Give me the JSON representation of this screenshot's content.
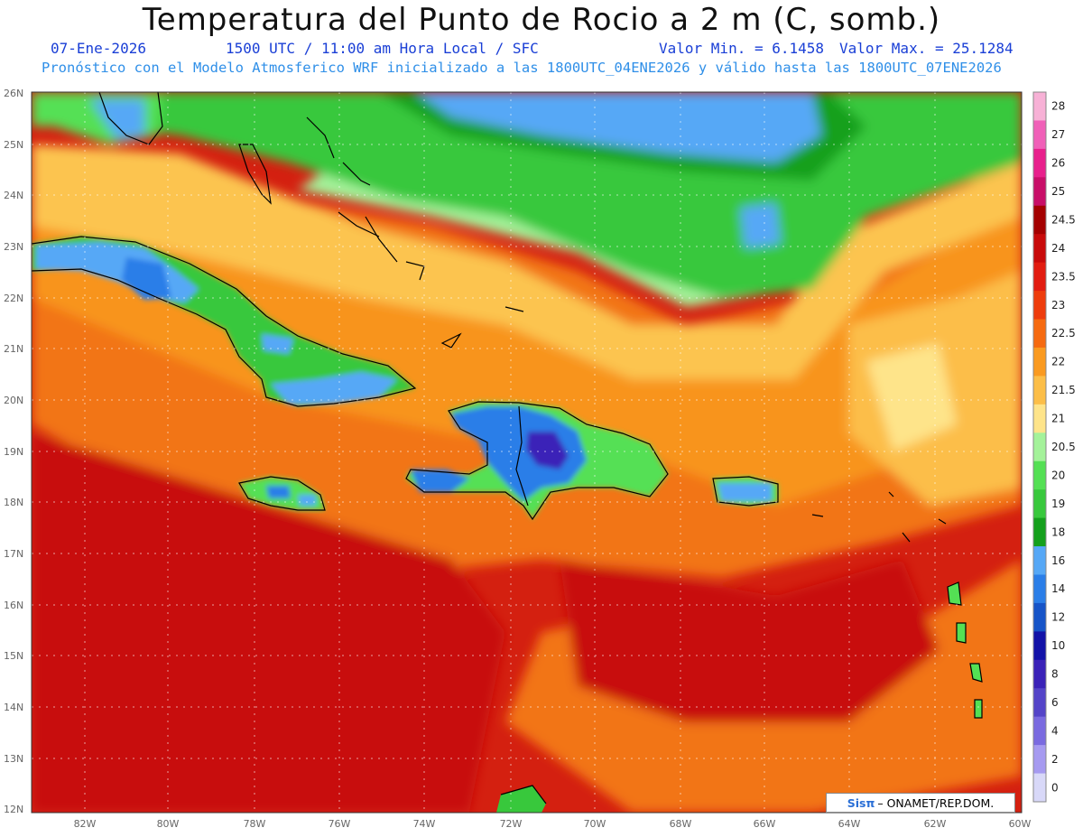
{
  "header": {
    "title": "Temperatura del Punto de Rocio a 2 m (C, somb.)",
    "date": "07-Ene-2026",
    "time": "1500 UTC / 11:00 am Hora Local / SFC",
    "min": "Valor Min. = 6.1458",
    "max": "Valor Max. = 25.1284",
    "info": "Pronóstico con el Modelo Atmosferico WRF inicializado a las 1800UTC_04ENE2026 y válido hasta las  1800UTC_07ENE2026"
  },
  "colors": {
    "date_text": "#1a3fd6",
    "info_text": "#2f8fe8"
  },
  "map": {
    "lat_labels": [
      "26N",
      "25N",
      "24N",
      "23N",
      "22N",
      "21N",
      "20N",
      "19N",
      "18N",
      "17N",
      "16N",
      "15N",
      "14N",
      "13N",
      "12N"
    ],
    "lon_labels": [
      "82W",
      "80W",
      "78W",
      "76W",
      "74W",
      "72W",
      "70W",
      "68W",
      "66W",
      "64W",
      "62W",
      "60W"
    ]
  },
  "colorbar": {
    "labels": [
      "28",
      "27",
      "26",
      "25",
      "24.5",
      "24",
      "23.5",
      "23",
      "22.5",
      "22",
      "21.5",
      "21",
      "20.5",
      "20",
      "19",
      "18",
      "16",
      "14",
      "12",
      "10",
      "8",
      "6",
      "4",
      "2",
      "0"
    ],
    "colors": [
      "#f7b1d6",
      "#f060b8",
      "#e8208c",
      "#c80e68",
      "#a40000",
      "#c80a0a",
      "#e21c10",
      "#ee3c0c",
      "#f66a10",
      "#fa9a20",
      "#fcbe48",
      "#fee48a",
      "#a4f29a",
      "#54e054",
      "#38c83c",
      "#14a01c",
      "#56a8f6",
      "#2a7ee8",
      "#1654c8",
      "#1212a8",
      "#3a22b8",
      "#5444c8",
      "#7a6ae0",
      "#a69af0",
      "#d8d8f8"
    ]
  },
  "logo": {
    "brand": "Sisπ",
    "text": "– ONAMET/REP.DOM."
  }
}
